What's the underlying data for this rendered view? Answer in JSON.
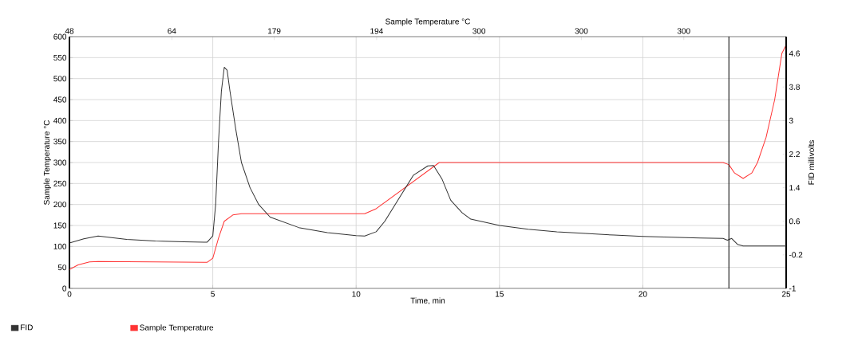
{
  "chart_data": {
    "type": "line",
    "x2label": "Sample Temperature °C",
    "xlabel": "Time, min",
    "ylabel": "Sample Temperature °C",
    "y2label": "FID millivolts",
    "xlim": [
      0,
      25
    ],
    "xticks": [
      0,
      5,
      10,
      15,
      20,
      25
    ],
    "annotations": [
      "48",
      "64",
      "179",
      "194",
      "300",
      "300",
      "300"
    ],
    "ylim": [
      0,
      600
    ],
    "yticks": [
      0,
      50,
      100,
      150,
      200,
      250,
      300,
      350,
      400,
      450,
      500,
      550,
      600
    ],
    "y2lim": [
      -1,
      5
    ],
    "y2ticks": [
      -1,
      -0.2,
      0.6,
      1.4,
      2.2,
      3,
      3.8,
      4.6
    ],
    "grid": true,
    "legend": "bottom left",
    "line_style": "solid",
    "marker": "none",
    "ref_lines": [
      {
        "axis": "x",
        "value": 23,
        "color": "#000000"
      }
    ],
    "series": [
      {
        "name": "FID",
        "color": "#333333",
        "axis": "y2",
        "x": [
          0,
          0.5,
          1,
          2,
          3,
          4,
          4.8,
          5.0,
          5.1,
          5.2,
          5.3,
          5.4,
          5.5,
          5.6,
          5.8,
          6.0,
          6.3,
          6.6,
          7,
          8,
          9,
          10,
          10.3,
          10.7,
          11,
          11.5,
          12,
          12.5,
          12.7,
          13,
          13.3,
          13.7,
          14,
          15,
          16,
          17,
          18,
          19,
          20,
          21,
          22,
          22.8,
          22.95,
          23.1,
          23.3,
          23.5,
          25
        ],
        "values": [
          0.08,
          0.18,
          0.25,
          0.17,
          0.13,
          0.11,
          0.1,
          0.25,
          1.0,
          2.5,
          3.7,
          4.27,
          4.2,
          3.7,
          2.8,
          2.0,
          1.4,
          1.0,
          0.7,
          0.45,
          0.33,
          0.26,
          0.25,
          0.35,
          0.6,
          1.15,
          1.7,
          1.92,
          1.93,
          1.6,
          1.1,
          0.8,
          0.65,
          0.5,
          0.41,
          0.35,
          0.31,
          0.27,
          0.24,
          0.22,
          0.2,
          0.19,
          0.15,
          0.19,
          0.05,
          0.01,
          0.01
        ]
      },
      {
        "name": "Sample Temperature",
        "color": "#ff3333",
        "x": [
          0,
          0.3,
          0.7,
          1,
          3,
          4.8,
          5.0,
          5.2,
          5.4,
          5.7,
          6,
          10.3,
          10.7,
          12.9,
          13.2,
          22.8,
          23,
          23.2,
          23.5,
          23.8,
          24,
          24.3,
          24.6,
          24.85,
          25
        ],
        "values": [
          45,
          56,
          63,
          64,
          63,
          62,
          72,
          120,
          160,
          175,
          178,
          178,
          190,
          300,
          300,
          300,
          295,
          275,
          262,
          275,
          300,
          360,
          450,
          560,
          580
        ]
      }
    ]
  }
}
